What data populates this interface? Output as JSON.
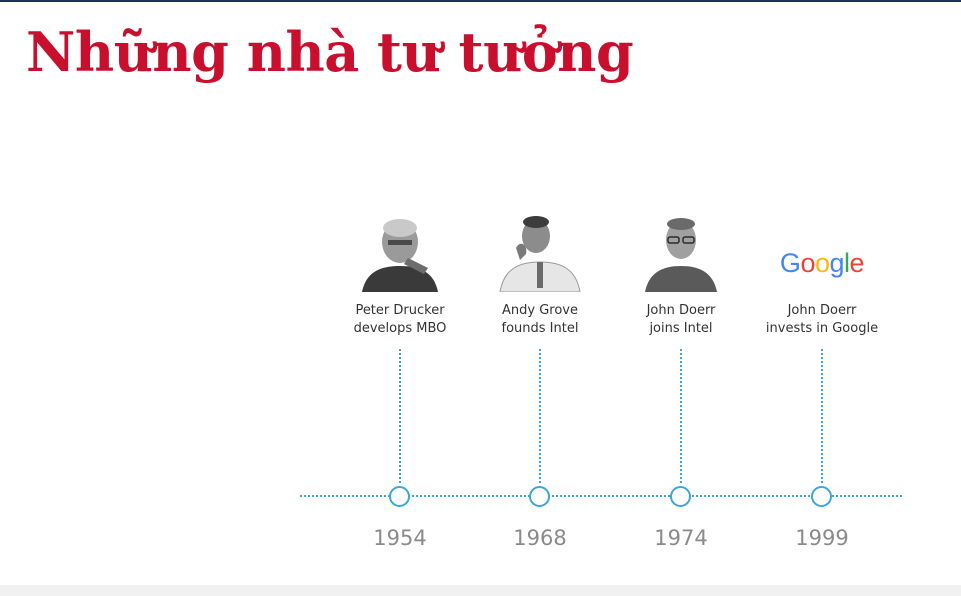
{
  "slide": {
    "title": "Những nhà tư tưởng",
    "title_color": "#c8102e",
    "accent_color": "#39a7d9"
  },
  "timeline": {
    "events": [
      {
        "year": "1954",
        "caption_line1": "Peter Drucker",
        "caption_line2": "develops MBO",
        "image": "portrait-photo"
      },
      {
        "year": "1968",
        "caption_line1": "Andy Grove",
        "caption_line2": "founds Intel",
        "image": "portrait-photo"
      },
      {
        "year": "1974",
        "caption_line1": "John Doerr",
        "caption_line2": "joins Intel",
        "image": "portrait-photo"
      },
      {
        "year": "1999",
        "caption_line1": "John Doerr",
        "caption_line2": "invests in Google",
        "image": "google-logo",
        "logo_letters": [
          "G",
          "o",
          "o",
          "g",
          "l",
          "e"
        ],
        "logo_colors": [
          "#4285F4",
          "#EA4335",
          "#FBBC05",
          "#4285F4",
          "#34A853",
          "#EA4335"
        ]
      }
    ]
  }
}
